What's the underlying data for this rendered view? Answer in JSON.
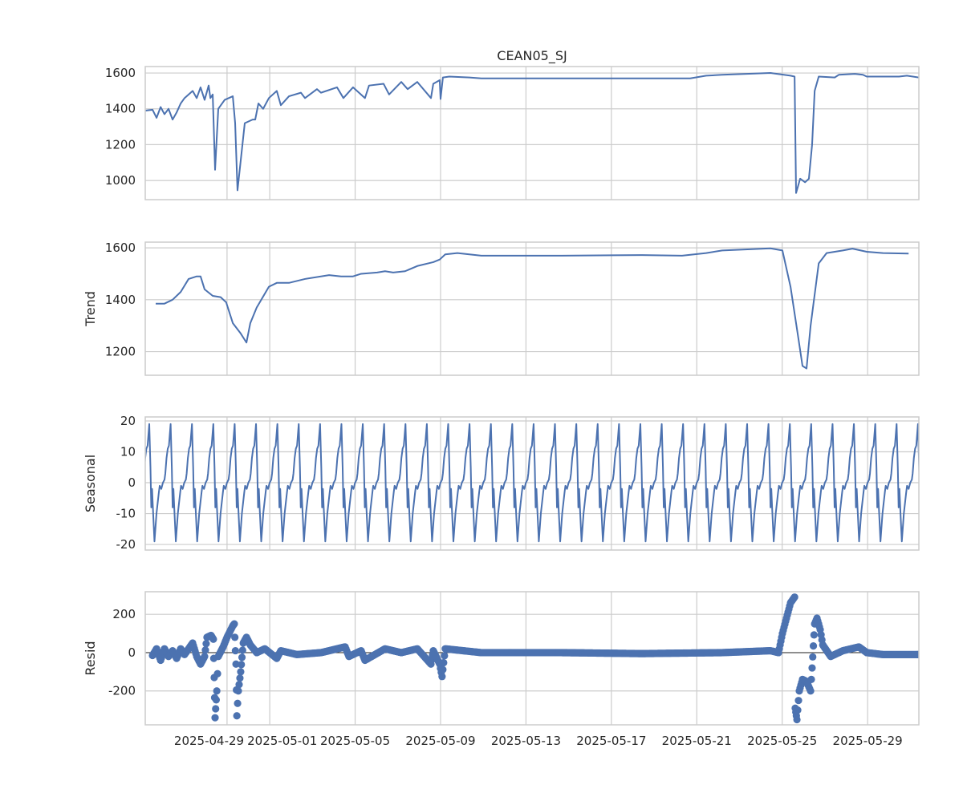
{
  "chart_data": {
    "type": "line",
    "title": "CEAN05_SJ",
    "x_unit": "days since 2025-04-25 00:00",
    "xlim": [
      0.17,
      36.4
    ],
    "xticks": [
      {
        "day": 4,
        "label": "2025-04-29"
      },
      {
        "day": 6,
        "label": "2025-05-01"
      },
      {
        "day": 10,
        "label": "2025-05-05"
      },
      {
        "day": 14,
        "label": "2025-05-09"
      },
      {
        "day": 18,
        "label": "2025-05-13"
      },
      {
        "day": 22,
        "label": "2025-05-17"
      },
      {
        "day": 26,
        "label": "2025-05-21"
      },
      {
        "day": 30,
        "label": "2025-05-25"
      },
      {
        "day": 34,
        "label": "2025-05-29"
      }
    ],
    "grid": true,
    "panels": [
      {
        "name": "observed",
        "ylabel": "",
        "ylim": [
          893,
          1636
        ],
        "yticks": [
          1000,
          1200,
          1400,
          1600
        ],
        "kind": "line",
        "points_px_x": "see data",
        "data": [
          [
            0.17,
            1390
          ],
          [
            0.51,
            1395
          ],
          [
            0.7,
            1350
          ],
          [
            0.89,
            1410
          ],
          [
            1.07,
            1370
          ],
          [
            1.26,
            1400
          ],
          [
            1.45,
            1340
          ],
          [
            1.64,
            1380
          ],
          [
            1.83,
            1430
          ],
          [
            2.01,
            1460
          ],
          [
            2.2,
            1480
          ],
          [
            2.39,
            1500
          ],
          [
            2.58,
            1460
          ],
          [
            2.76,
            1520
          ],
          [
            2.95,
            1450
          ],
          [
            3.14,
            1530
          ],
          [
            3.22,
            1460
          ],
          [
            3.33,
            1480
          ],
          [
            3.44,
            1060
          ],
          [
            3.59,
            1400
          ],
          [
            3.89,
            1450
          ],
          [
            4.27,
            1470
          ],
          [
            4.38,
            1320
          ],
          [
            4.49,
            945
          ],
          [
            4.83,
            1320
          ],
          [
            5.2,
            1340
          ],
          [
            5.32,
            1340
          ],
          [
            5.47,
            1430
          ],
          [
            5.69,
            1400
          ],
          [
            5.96,
            1460
          ],
          [
            6.33,
            1500
          ],
          [
            6.52,
            1420
          ],
          [
            6.9,
            1470
          ],
          [
            7.46,
            1490
          ],
          [
            7.65,
            1460
          ],
          [
            8.21,
            1510
          ],
          [
            8.4,
            1490
          ],
          [
            9.15,
            1520
          ],
          [
            9.45,
            1460
          ],
          [
            9.9,
            1520
          ],
          [
            10.46,
            1460
          ],
          [
            10.65,
            1530
          ],
          [
            11.33,
            1540
          ],
          [
            11.59,
            1480
          ],
          [
            12.16,
            1550
          ],
          [
            12.46,
            1510
          ],
          [
            12.91,
            1550
          ],
          [
            13.55,
            1460
          ],
          [
            13.66,
            1540
          ],
          [
            13.96,
            1560
          ],
          [
            14.0,
            1455
          ],
          [
            14.11,
            1575
          ],
          [
            14.41,
            1580
          ],
          [
            15.35,
            1575
          ],
          [
            15.91,
            1570
          ],
          [
            19.67,
            1570
          ],
          [
            23.43,
            1570
          ],
          [
            25.69,
            1570
          ],
          [
            26.44,
            1585
          ],
          [
            27.19,
            1590
          ],
          [
            29.45,
            1600
          ],
          [
            30.39,
            1585
          ],
          [
            30.58,
            1580
          ],
          [
            30.65,
            930
          ],
          [
            30.84,
            1010
          ],
          [
            31.07,
            990
          ],
          [
            31.25,
            1010
          ],
          [
            31.4,
            1200
          ],
          [
            31.52,
            1500
          ],
          [
            31.71,
            1580
          ],
          [
            32.46,
            1575
          ],
          [
            32.65,
            1590
          ],
          [
            33.4,
            1595
          ],
          [
            33.78,
            1590
          ],
          [
            33.96,
            1580
          ],
          [
            34.72,
            1580
          ],
          [
            35.47,
            1580
          ],
          [
            35.84,
            1585
          ],
          [
            36.4,
            1575
          ]
        ]
      },
      {
        "name": "trend",
        "ylabel": "Trend",
        "ylim": [
          1109,
          1622
        ],
        "yticks": [
          1200,
          1400,
          1600
        ],
        "kind": "line",
        "data": [
          [
            0.66,
            1385
          ],
          [
            1.07,
            1385
          ],
          [
            1.45,
            1400
          ],
          [
            1.83,
            1430
          ],
          [
            2.2,
            1480
          ],
          [
            2.58,
            1490
          ],
          [
            2.76,
            1490
          ],
          [
            2.95,
            1440
          ],
          [
            3.33,
            1415
          ],
          [
            3.7,
            1410
          ],
          [
            3.96,
            1390
          ],
          [
            4.27,
            1310
          ],
          [
            4.64,
            1270
          ],
          [
            4.91,
            1235
          ],
          [
            5.09,
            1310
          ],
          [
            5.39,
            1370
          ],
          [
            5.96,
            1450
          ],
          [
            6.33,
            1465
          ],
          [
            6.9,
            1465
          ],
          [
            7.65,
            1480
          ],
          [
            8.78,
            1495
          ],
          [
            9.34,
            1490
          ],
          [
            9.9,
            1490
          ],
          [
            10.28,
            1500
          ],
          [
            11.03,
            1505
          ],
          [
            11.4,
            1510
          ],
          [
            11.78,
            1505
          ],
          [
            12.34,
            1510
          ],
          [
            12.91,
            1530
          ],
          [
            13.66,
            1545
          ],
          [
            13.96,
            1555
          ],
          [
            14.22,
            1575
          ],
          [
            14.79,
            1580
          ],
          [
            15.91,
            1570
          ],
          [
            19.67,
            1570
          ],
          [
            23.43,
            1572
          ],
          [
            25.31,
            1570
          ],
          [
            26.44,
            1580
          ],
          [
            27.19,
            1590
          ],
          [
            29.45,
            1598
          ],
          [
            30.01,
            1590
          ],
          [
            30.39,
            1450
          ],
          [
            30.76,
            1250
          ],
          [
            30.95,
            1145
          ],
          [
            31.14,
            1135
          ],
          [
            31.33,
            1300
          ],
          [
            31.71,
            1540
          ],
          [
            32.08,
            1580
          ],
          [
            32.84,
            1590
          ],
          [
            33.29,
            1597
          ],
          [
            33.96,
            1585
          ],
          [
            34.72,
            1580
          ],
          [
            35.92,
            1578
          ]
        ]
      },
      {
        "name": "seasonal",
        "ylabel": "Seasonal",
        "ylim": [
          -21.8,
          21.3
        ],
        "yticks": [
          -20,
          -10,
          0,
          10,
          20
        ],
        "kind": "periodic",
        "period_days": 1,
        "first_peak_day": 0.358,
        "start_day": 0.17,
        "end_day": 36.4,
        "cycle": [
          [
            0,
            19
          ],
          [
            0.056,
            5
          ],
          [
            0.094,
            -8
          ],
          [
            0.132,
            -2
          ],
          [
            0.169,
            -8
          ],
          [
            0.244,
            -19
          ],
          [
            0.338,
            -10
          ],
          [
            0.451,
            -3
          ],
          [
            0.489,
            -1
          ],
          [
            0.564,
            -2
          ],
          [
            0.639,
            0
          ],
          [
            0.714,
            1
          ],
          [
            0.752,
            3
          ],
          [
            0.808,
            8
          ],
          [
            0.865,
            11
          ],
          [
            0.921,
            12
          ],
          [
            1.0,
            19
          ]
        ]
      },
      {
        "name": "resid",
        "ylabel": "Resid",
        "ylim": [
          -377,
          318
        ],
        "yticks": [
          -200,
          0,
          200
        ],
        "kind": "scatter",
        "zero_line": true,
        "data": [
          [
            0.51,
            -15
          ],
          [
            0.7,
            20
          ],
          [
            0.89,
            -40
          ],
          [
            1.07,
            20
          ],
          [
            1.26,
            -20
          ],
          [
            1.45,
            10
          ],
          [
            1.64,
            -30
          ],
          [
            1.83,
            20
          ],
          [
            2.01,
            -10
          ],
          [
            2.39,
            50
          ],
          [
            2.58,
            -20
          ],
          [
            2.76,
            -60
          ],
          [
            2.95,
            -20
          ],
          [
            3.06,
            80
          ],
          [
            3.25,
            90
          ],
          [
            3.36,
            70
          ],
          [
            3.4,
            -130
          ],
          [
            3.44,
            -340
          ],
          [
            3.52,
            -200
          ],
          [
            3.59,
            -20
          ],
          [
            3.82,
            30
          ],
          [
            4.0,
            80
          ],
          [
            4.27,
            140
          ],
          [
            4.34,
            150
          ],
          [
            4.42,
            -60
          ],
          [
            4.46,
            -330
          ],
          [
            4.53,
            -200
          ],
          [
            4.64,
            -100
          ],
          [
            4.76,
            50
          ],
          [
            4.91,
            80
          ],
          [
            5.09,
            40
          ],
          [
            5.39,
            0
          ],
          [
            5.77,
            20
          ],
          [
            6.33,
            -30
          ],
          [
            6.52,
            10
          ],
          [
            7.27,
            -10
          ],
          [
            8.4,
            0
          ],
          [
            9.53,
            30
          ],
          [
            9.71,
            -20
          ],
          [
            10.28,
            10
          ],
          [
            10.46,
            -40
          ],
          [
            11.4,
            20
          ],
          [
            12.16,
            0
          ],
          [
            12.91,
            20
          ],
          [
            13.55,
            -60
          ],
          [
            13.66,
            10
          ],
          [
            13.96,
            -60
          ],
          [
            14.07,
            -125
          ],
          [
            14.22,
            20
          ],
          [
            15.91,
            0
          ],
          [
            19.67,
            0
          ],
          [
            23.43,
            -5
          ],
          [
            27.19,
            0
          ],
          [
            29.45,
            10
          ],
          [
            29.83,
            0
          ],
          [
            30.01,
            100
          ],
          [
            30.2,
            180
          ],
          [
            30.39,
            260
          ],
          [
            30.58,
            290
          ],
          [
            30.61,
            -290
          ],
          [
            30.69,
            -350
          ],
          [
            30.8,
            -200
          ],
          [
            30.95,
            -140
          ],
          [
            31.14,
            -150
          ],
          [
            31.33,
            -200
          ],
          [
            31.4,
            -80
          ],
          [
            31.52,
            150
          ],
          [
            31.63,
            180
          ],
          [
            31.78,
            120
          ],
          [
            31.9,
            40
          ],
          [
            32.27,
            -20
          ],
          [
            32.84,
            10
          ],
          [
            33.59,
            30
          ],
          [
            33.96,
            0
          ],
          [
            34.72,
            -10
          ],
          [
            36.4,
            -10
          ]
        ]
      }
    ],
    "series_color": "#4c72b0"
  }
}
